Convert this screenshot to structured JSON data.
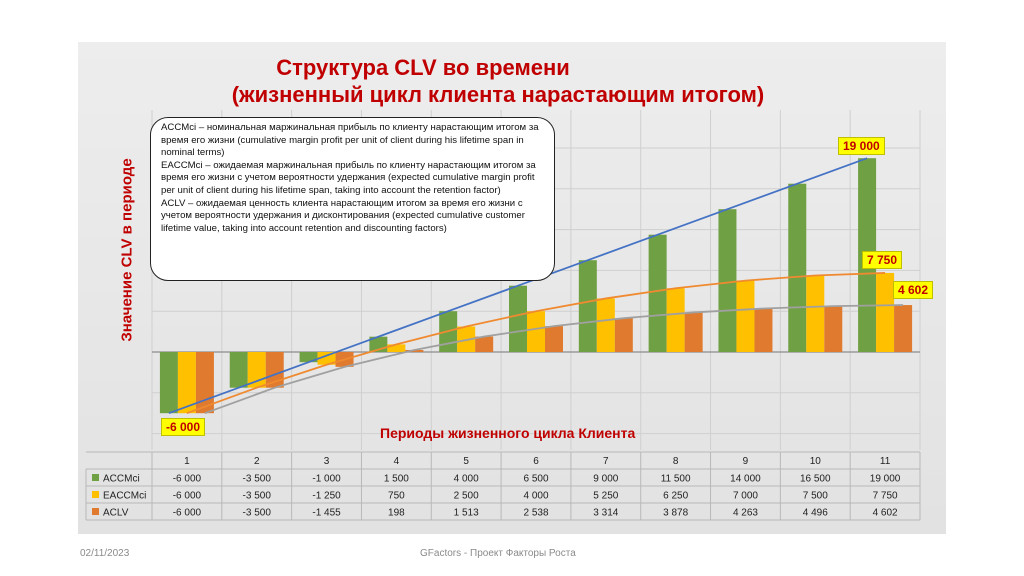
{
  "title_line1": "Структура CLV во времени",
  "title_line2": "(жизненный цикл клиента нарастающим итогом)",
  "ylabel": "Значение  CLV в периоде",
  "xlabel": "Периоды жизненного цикла Клиента",
  "note": {
    "line1": "ACCMci – номинальная маржинальная прибыль по клиенту нарастающим итогом за время его жизни (cumulative margin profit per unit of client during his lifetime span in nominal terms)",
    "line2": "EACCMci – ожидаемая маржинальная прибыль по клиенту нарастающим итогом за время его жизни с учетом вероятности удержания (expected cumulative margin profit per unit of client during his lifetime span, taking into account the retention factor)",
    "line3": "ACLV – ожидаемая ценность клиента нарастающим итогом за время его жизни с учетом вероятности удержания и дисконтирования (expected cumulative customer lifetime value, taking into account retention and discounting factors)"
  },
  "callouts": {
    "first": "-6 000",
    "accm_last": "19 000",
    "eaccm_last": "7 750",
    "aclv_last": "4 602"
  },
  "footer": {
    "date": "02/11/2023",
    "center": "GFactors - Проект Факторы Роста"
  },
  "colors": {
    "accm": "#70a044",
    "eaccm": "#ffc000",
    "aclv": "#e07a2e",
    "accm_trend": "#4472c4",
    "eaccm_trend": "#f08a30",
    "aclv_trend": "#a0a0a0",
    "accent": "#c00000"
  },
  "chart_data": {
    "type": "bar",
    "categories": [
      "1",
      "2",
      "3",
      "4",
      "5",
      "6",
      "7",
      "8",
      "9",
      "10",
      "11"
    ],
    "series": [
      {
        "name": "ACCMci",
        "values": [
          -6000,
          -3500,
          -1000,
          1500,
          4000,
          6500,
          9000,
          11500,
          14000,
          16500,
          19000
        ],
        "labels": [
          "-6 000",
          "-3 500",
          "-1 000",
          "1 500",
          "4 000",
          "6 500",
          "9 000",
          "11 500",
          "14 000",
          "16 500",
          "19 000"
        ]
      },
      {
        "name": "EACCMci",
        "values": [
          -6000,
          -3500,
          -1250,
          750,
          2500,
          4000,
          5250,
          6250,
          7000,
          7500,
          7750
        ],
        "labels": [
          "-6 000",
          "-3 500",
          "-1 250",
          "750",
          "2 500",
          "4 000",
          "5 250",
          "6 250",
          "7 000",
          "7 500",
          "7 750"
        ]
      },
      {
        "name": "ACLV",
        "values": [
          -6000,
          -3500,
          -1455,
          198,
          1513,
          2538,
          3314,
          3878,
          4263,
          4496,
          4602
        ],
        "labels": [
          "-6 000",
          "-3 500",
          "-1 455",
          "198",
          "1 513",
          "2 538",
          "3 314",
          "3 878",
          "4 263",
          "4 496",
          "4 602"
        ]
      }
    ],
    "ylim": [
      -8000,
      25000
    ],
    "grid": true,
    "trendlines": true,
    "data_table": true
  }
}
